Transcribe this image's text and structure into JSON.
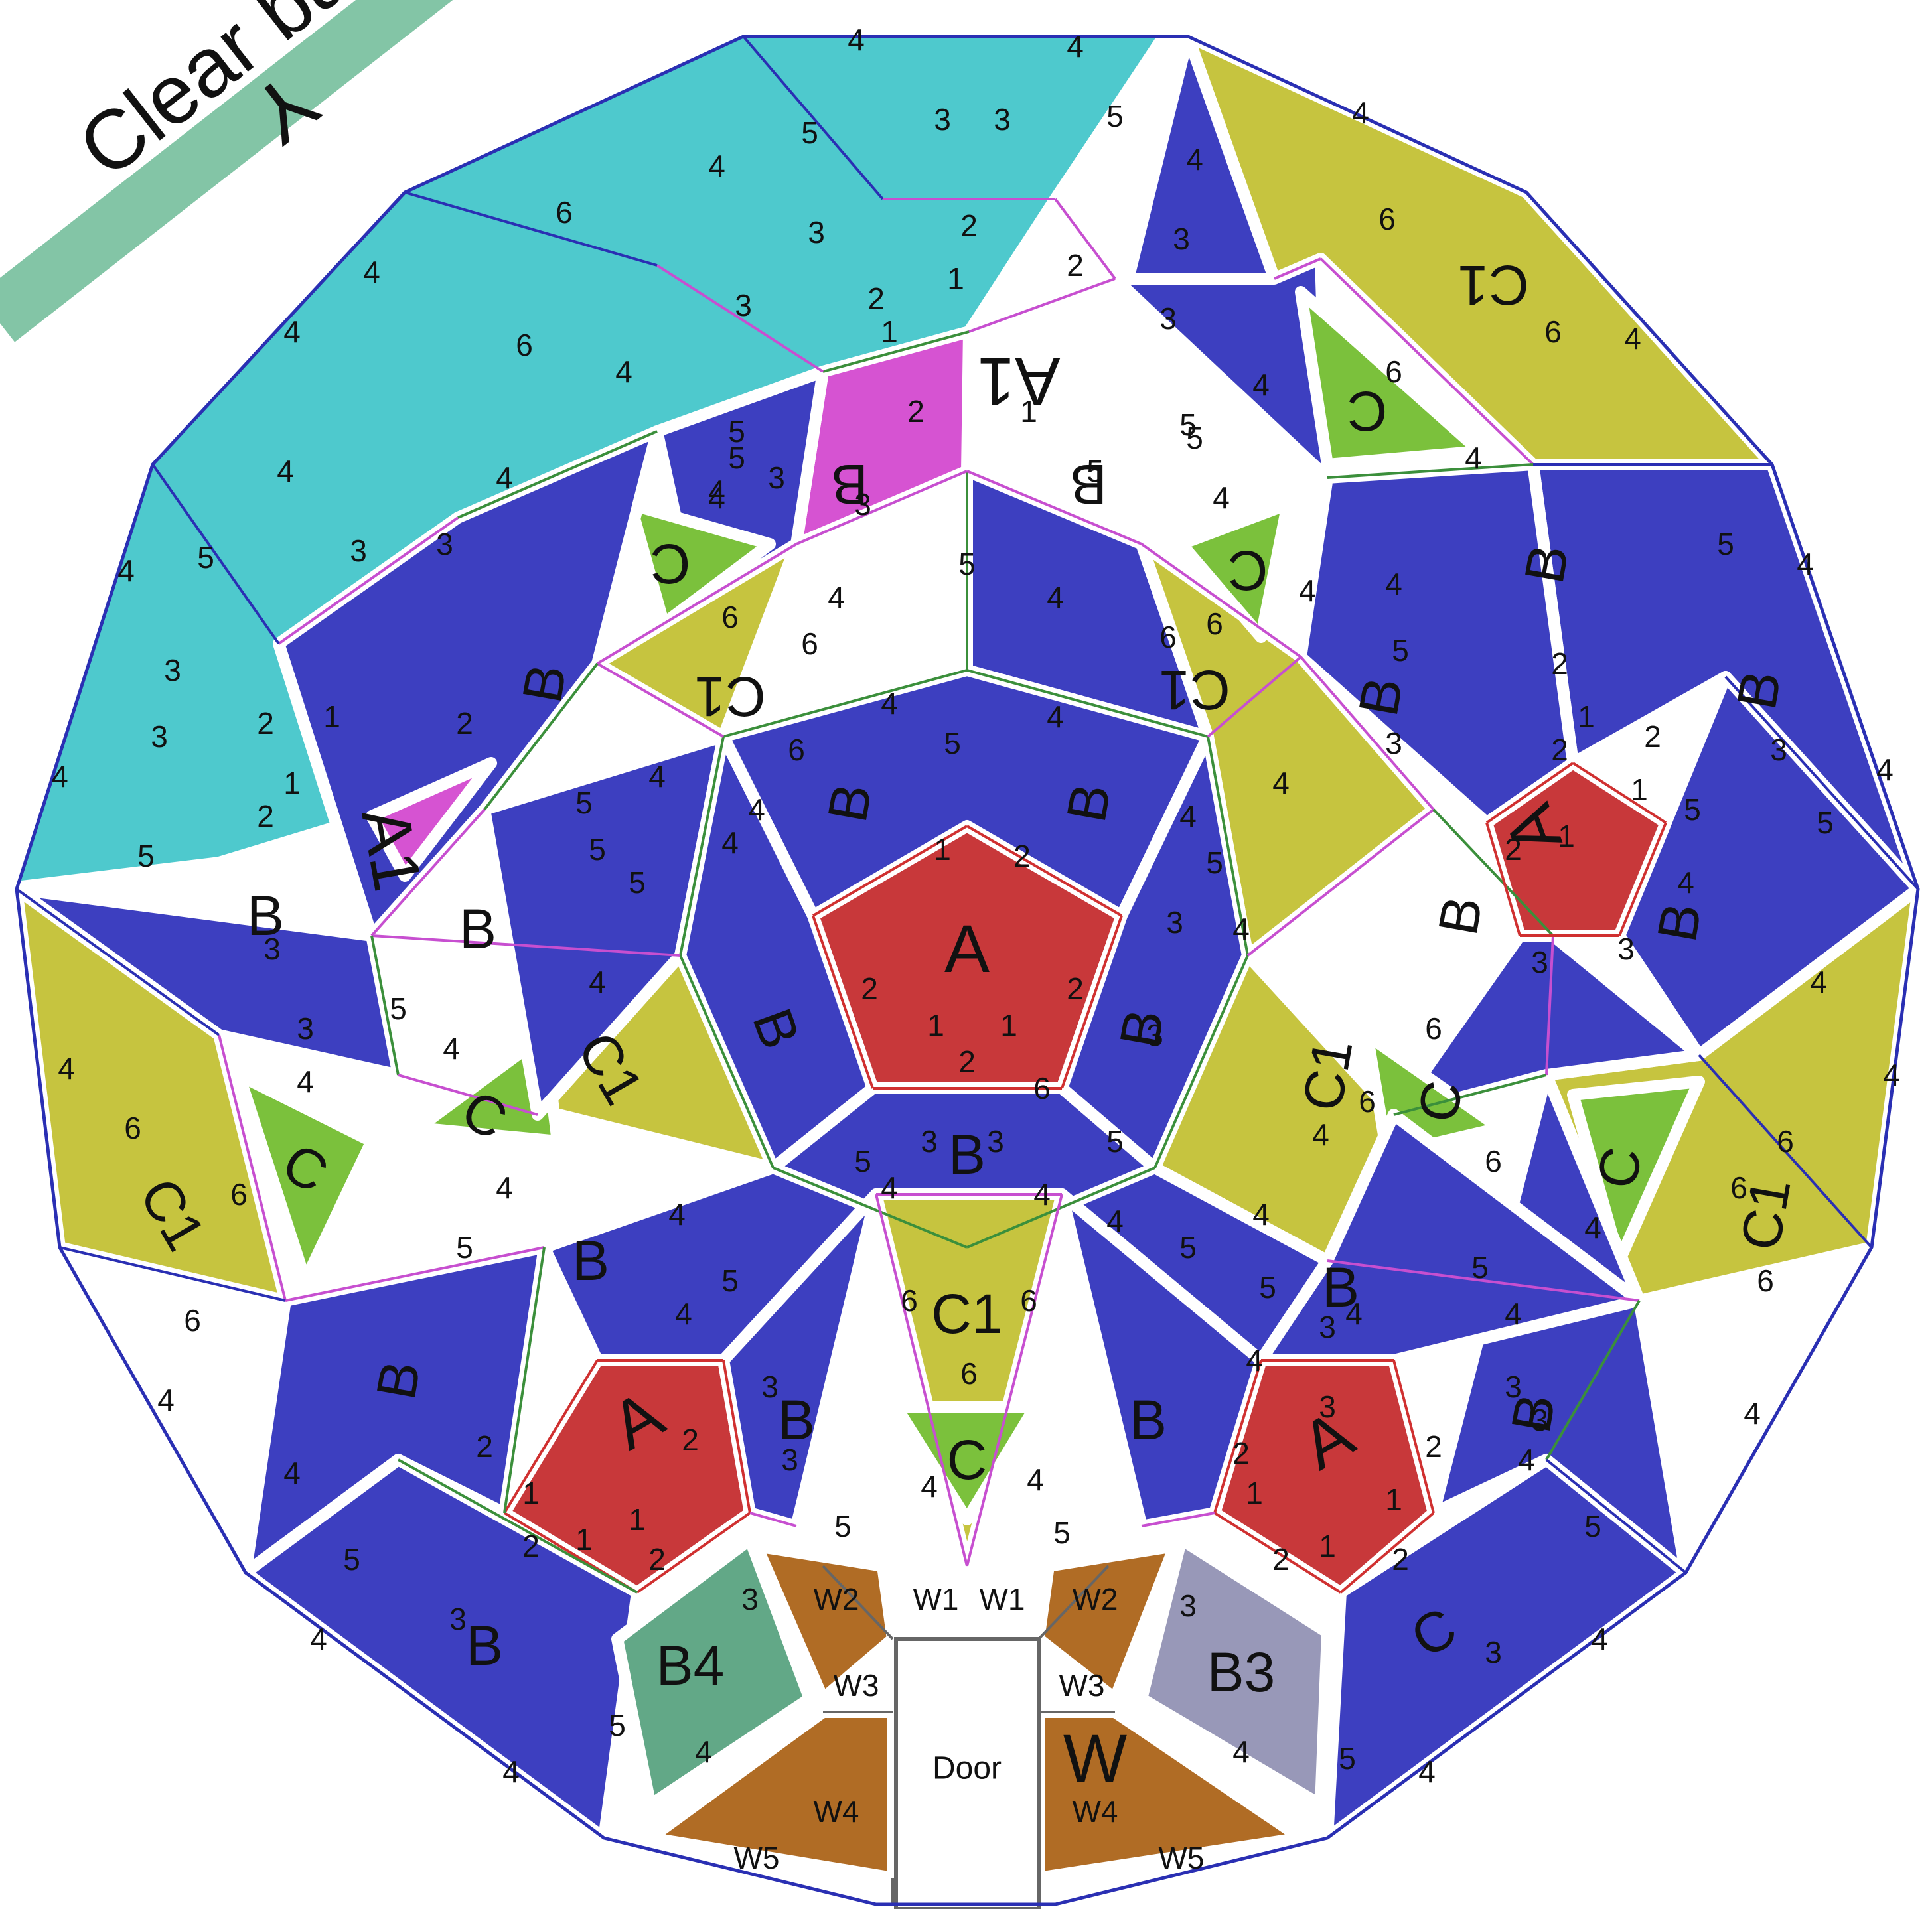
{
  "banner": {
    "text": "Clear bay wi",
    "subtext": "Y",
    "color": "#83c5a6"
  },
  "colors": {
    "A": "#c8383a",
    "A1": "#d653d2",
    "B": "#3d3fc0",
    "C": "#7bc13c",
    "C1": "#c6c43f",
    "clear": "#4ec9cd",
    "B3": "#9898b8",
    "B4": "#62a887",
    "W": "#b06c25",
    "outline": "#2a2fb3",
    "strut_pink": "#c74fd0",
    "strut_green": "#3b8f3b",
    "strut_red": "#d03030",
    "door_frame": "#666666"
  },
  "door": {
    "label": "Door"
  },
  "panel_labels": [
    {
      "key": "a1",
      "text": "A"
    },
    {
      "key": "a2",
      "text": "A"
    },
    {
      "key": "a3",
      "text": "A"
    },
    {
      "key": "a4",
      "text": "A"
    },
    {
      "key": "a1p1",
      "text": "A1"
    },
    {
      "key": "a1p2",
      "text": "A1"
    },
    {
      "key": "b1",
      "text": "B"
    },
    {
      "key": "b2",
      "text": "B"
    },
    {
      "key": "b3",
      "text": "B"
    },
    {
      "key": "b4",
      "text": "B"
    },
    {
      "key": "b5",
      "text": "B"
    },
    {
      "key": "b6",
      "text": "B"
    },
    {
      "key": "b7",
      "text": "B"
    },
    {
      "key": "b8",
      "text": "B"
    },
    {
      "key": "b9",
      "text": "B"
    },
    {
      "key": "b10",
      "text": "B"
    },
    {
      "key": "b11",
      "text": "B"
    },
    {
      "key": "b12",
      "text": "B"
    },
    {
      "key": "b13",
      "text": "B"
    },
    {
      "key": "b14",
      "text": "B"
    },
    {
      "key": "b15",
      "text": "B"
    },
    {
      "key": "b16",
      "text": "B"
    },
    {
      "key": "b17",
      "text": "B"
    },
    {
      "key": "b18",
      "text": "B"
    },
    {
      "key": "b19",
      "text": "B"
    },
    {
      "key": "b20",
      "text": "B"
    },
    {
      "key": "b21",
      "text": "B"
    },
    {
      "key": "b22",
      "text": "B"
    },
    {
      "key": "c1",
      "text": "C"
    },
    {
      "key": "c2",
      "text": "C"
    },
    {
      "key": "c3",
      "text": "C"
    },
    {
      "key": "c4",
      "text": "C"
    },
    {
      "key": "c5",
      "text": "C"
    },
    {
      "key": "c6",
      "text": "C"
    },
    {
      "key": "c7",
      "text": "C"
    },
    {
      "key": "c8",
      "text": "C"
    },
    {
      "key": "c9",
      "text": "C"
    },
    {
      "key": "c1p1",
      "text": "C1"
    },
    {
      "key": "c1p2",
      "text": "C1"
    },
    {
      "key": "c1p3",
      "text": "C1"
    },
    {
      "key": "c1p4",
      "text": "C1"
    },
    {
      "key": "c1p5",
      "text": "C1"
    },
    {
      "key": "c1p6",
      "text": "C1"
    },
    {
      "key": "c1p7",
      "text": "C1"
    },
    {
      "key": "c1p8",
      "text": "C1"
    },
    {
      "key": "b3p",
      "text": "B3"
    },
    {
      "key": "b4p",
      "text": "B4"
    },
    {
      "key": "wp",
      "text": "W"
    }
  ],
  "strut_labels": {
    "one": "1",
    "two": "2",
    "three": "3",
    "four": "4",
    "five": "5",
    "six": "6",
    "w1": "W1",
    "w2": "W2",
    "w3": "W3",
    "w4": "W4",
    "w5": "W5"
  }
}
